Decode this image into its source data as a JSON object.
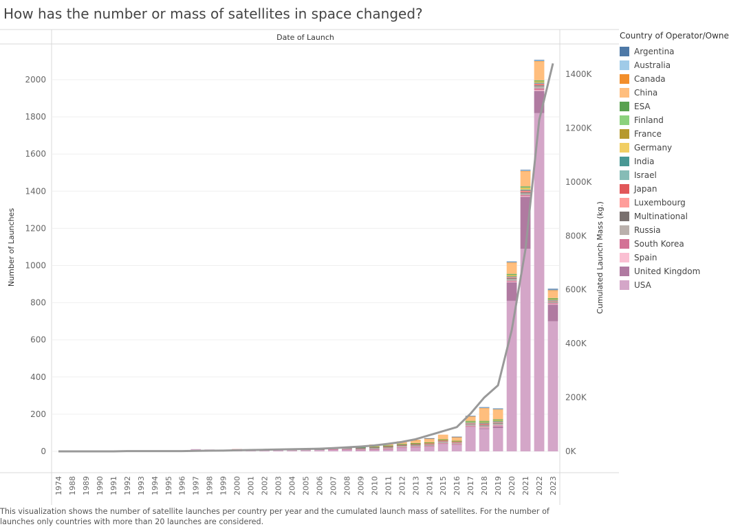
{
  "title": "How has the number or mass of satellites in space changed?",
  "caption": "This visualization shows the number of satellite launches per country per year and the cumulated launch mass of satellites. For the number of launches only countries with more than 20 launches are considered.",
  "chart_data": {
    "type": "bar",
    "stacked": true,
    "title": "How has the number or mass of satellites in space changed?",
    "column_header": "Date of Launch",
    "ylabel": "Number of Launches",
    "y2label": "Cumulated Launch Mass (kg.)",
    "ylim": [
      0,
      2100
    ],
    "y_ticks": [
      "0",
      "200",
      "400",
      "600",
      "800",
      "1000",
      "1200",
      "1400",
      "1600",
      "1800",
      "2000"
    ],
    "y2lim": [
      0,
      1450000
    ],
    "y2_ticks": [
      "0K",
      "200K",
      "400K",
      "600K",
      "800K",
      "1000K",
      "1200K",
      "1400K"
    ],
    "legend_title": "Country of Operator/Owner",
    "legend_position": "right",
    "grid": true,
    "categories": [
      "1974",
      "1988",
      "1989",
      "1990",
      "1991",
      "1992",
      "1993",
      "1994",
      "1995",
      "1996",
      "1997",
      "1998",
      "1999",
      "2000",
      "2001",
      "2002",
      "2003",
      "2004",
      "2005",
      "2006",
      "2007",
      "2008",
      "2009",
      "2010",
      "2011",
      "2012",
      "2013",
      "2014",
      "2015",
      "2016",
      "2017",
      "2018",
      "2019",
      "2020",
      "2021",
      "2022",
      "2023"
    ],
    "series": [
      {
        "name": "Argentina",
        "color": "#4e79a7",
        "values": [
          0,
          0,
          0,
          0,
          0,
          0,
          0,
          0,
          0,
          0,
          0,
          0,
          0,
          0,
          0,
          0,
          0,
          0,
          0,
          0,
          0,
          0,
          0,
          0,
          0,
          0,
          0,
          1,
          0,
          1,
          1,
          2,
          2,
          3,
          3,
          3,
          5
        ]
      },
      {
        "name": "Australia",
        "color": "#a0cbe8",
        "values": [
          0,
          0,
          0,
          0,
          0,
          0,
          0,
          0,
          0,
          0,
          0,
          0,
          0,
          0,
          0,
          0,
          0,
          0,
          0,
          0,
          0,
          0,
          0,
          0,
          0,
          0,
          0,
          0,
          0,
          0,
          0,
          1,
          1,
          2,
          3,
          4,
          3
        ]
      },
      {
        "name": "Canada",
        "color": "#f28e2b",
        "values": [
          0,
          0,
          0,
          0,
          0,
          0,
          0,
          0,
          0,
          0,
          0,
          0,
          0,
          0,
          0,
          0,
          0,
          0,
          0,
          0,
          0,
          0,
          0,
          0,
          0,
          0,
          1,
          1,
          0,
          1,
          1,
          1,
          1,
          2,
          3,
          3,
          2
        ]
      },
      {
        "name": "China",
        "color": "#ffbe7d",
        "values": [
          0,
          0,
          0,
          0,
          0,
          0,
          0,
          0,
          0,
          0,
          0,
          0,
          0,
          0,
          1,
          2,
          1,
          1,
          3,
          4,
          2,
          3,
          5,
          10,
          10,
          14,
          15,
          20,
          25,
          20,
          25,
          70,
          55,
          60,
          80,
          100,
          40
        ]
      },
      {
        "name": "ESA",
        "color": "#59a14f",
        "values": [
          0,
          0,
          0,
          0,
          0,
          0,
          0,
          0,
          0,
          0,
          0,
          0,
          0,
          0,
          0,
          0,
          0,
          0,
          0,
          0,
          0,
          1,
          1,
          1,
          1,
          1,
          2,
          2,
          2,
          1,
          2,
          3,
          3,
          3,
          3,
          3,
          2
        ]
      },
      {
        "name": "Finland",
        "color": "#8cd17d",
        "values": [
          0,
          0,
          0,
          0,
          0,
          0,
          0,
          0,
          0,
          0,
          0,
          0,
          0,
          0,
          0,
          0,
          0,
          0,
          0,
          0,
          0,
          0,
          0,
          0,
          0,
          0,
          0,
          0,
          0,
          0,
          1,
          2,
          2,
          3,
          4,
          3,
          2
        ]
      },
      {
        "name": "France",
        "color": "#b6992d",
        "values": [
          0,
          0,
          0,
          0,
          0,
          0,
          0,
          0,
          0,
          0,
          0,
          0,
          0,
          0,
          0,
          0,
          0,
          0,
          0,
          0,
          0,
          0,
          0,
          1,
          1,
          1,
          1,
          1,
          1,
          1,
          2,
          2,
          2,
          2,
          2,
          2,
          1
        ]
      },
      {
        "name": "Germany",
        "color": "#f1ce63",
        "values": [
          0,
          0,
          0,
          0,
          0,
          0,
          0,
          0,
          0,
          0,
          0,
          0,
          0,
          0,
          0,
          0,
          0,
          0,
          0,
          0,
          0,
          0,
          0,
          1,
          1,
          1,
          1,
          1,
          1,
          1,
          2,
          3,
          3,
          5,
          8,
          5,
          4
        ]
      },
      {
        "name": "India",
        "color": "#499894",
        "values": [
          0,
          0,
          0,
          0,
          0,
          0,
          0,
          0,
          0,
          0,
          0,
          0,
          0,
          0,
          0,
          0,
          0,
          0,
          0,
          0,
          1,
          1,
          1,
          1,
          2,
          2,
          2,
          2,
          2,
          2,
          3,
          2,
          2,
          2,
          3,
          3,
          2
        ]
      },
      {
        "name": "Israel",
        "color": "#86bcb6",
        "values": [
          0,
          0,
          0,
          0,
          0,
          0,
          0,
          0,
          0,
          0,
          0,
          0,
          0,
          0,
          0,
          0,
          0,
          0,
          0,
          0,
          0,
          0,
          0,
          0,
          0,
          0,
          0,
          0,
          0,
          0,
          1,
          1,
          1,
          2,
          2,
          2,
          1
        ]
      },
      {
        "name": "Japan",
        "color": "#e15759",
        "values": [
          0,
          0,
          0,
          0,
          0,
          0,
          0,
          0,
          0,
          0,
          0,
          0,
          0,
          1,
          0,
          0,
          2,
          1,
          1,
          2,
          2,
          2,
          3,
          3,
          3,
          3,
          3,
          3,
          3,
          3,
          3,
          5,
          3,
          3,
          5,
          5,
          3
        ]
      },
      {
        "name": "Luxembourg",
        "color": "#ff9d9a",
        "values": [
          0,
          0,
          0,
          0,
          0,
          0,
          0,
          0,
          0,
          0,
          0,
          0,
          0,
          0,
          0,
          0,
          0,
          0,
          0,
          0,
          0,
          0,
          0,
          0,
          0,
          0,
          0,
          1,
          1,
          1,
          2,
          3,
          3,
          3,
          5,
          4,
          3
        ]
      },
      {
        "name": "Multinational",
        "color": "#79706e",
        "values": [
          0,
          0,
          0,
          0,
          0,
          0,
          0,
          0,
          0,
          0,
          0,
          0,
          0,
          0,
          0,
          0,
          1,
          1,
          1,
          1,
          2,
          2,
          2,
          3,
          3,
          3,
          4,
          4,
          4,
          3,
          3,
          4,
          4,
          4,
          5,
          5,
          3
        ]
      },
      {
        "name": "Russia",
        "color": "#bab0ac",
        "values": [
          0,
          0,
          0,
          0,
          0,
          0,
          0,
          0,
          0,
          0,
          0,
          0,
          2,
          3,
          3,
          3,
          3,
          3,
          3,
          3,
          4,
          4,
          5,
          5,
          6,
          6,
          6,
          6,
          7,
          6,
          8,
          8,
          8,
          10,
          10,
          12,
          6
        ]
      },
      {
        "name": "South Korea",
        "color": "#d37295",
        "values": [
          0,
          0,
          0,
          0,
          0,
          0,
          0,
          0,
          0,
          0,
          0,
          0,
          0,
          0,
          0,
          0,
          0,
          0,
          0,
          0,
          1,
          1,
          1,
          1,
          1,
          1,
          1,
          1,
          1,
          1,
          2,
          3,
          3,
          5,
          5,
          8,
          5
        ]
      },
      {
        "name": "Spain",
        "color": "#fabfd2",
        "values": [
          0,
          0,
          0,
          0,
          0,
          0,
          0,
          0,
          0,
          0,
          0,
          0,
          0,
          0,
          0,
          0,
          0,
          0,
          0,
          0,
          0,
          0,
          0,
          0,
          1,
          1,
          1,
          1,
          1,
          1,
          2,
          3,
          3,
          3,
          4,
          5,
          3
        ]
      },
      {
        "name": "United Kingdom",
        "color": "#b07aa1",
        "values": [
          0,
          0,
          0,
          0,
          0,
          0,
          0,
          0,
          0,
          0,
          0,
          0,
          0,
          0,
          0,
          0,
          0,
          0,
          0,
          0,
          0,
          1,
          1,
          1,
          1,
          1,
          2,
          2,
          2,
          2,
          3,
          5,
          10,
          100,
          280,
          120,
          90
        ]
      },
      {
        "name": "USA",
        "color": "#d4a6c8",
        "values": [
          0,
          0,
          0,
          0,
          0,
          0,
          0,
          0,
          0,
          0,
          12,
          10,
          6,
          8,
          4,
          6,
          6,
          5,
          6,
          7,
          10,
          10,
          8,
          10,
          12,
          20,
          22,
          25,
          40,
          35,
          130,
          120,
          125,
          810,
          1090,
          1820,
          700
        ]
      }
    ],
    "line_series": {
      "name": "Cumulated Launch Mass (kg.)",
      "color": "#999999",
      "values": [
        0,
        0,
        0,
        0,
        0,
        1000,
        1000,
        1000,
        1000,
        1000,
        2000,
        2500,
        3000,
        4000,
        5000,
        6000,
        7000,
        8000,
        9000,
        10000,
        12000,
        15000,
        18000,
        22000,
        28000,
        35000,
        45000,
        60000,
        75000,
        90000,
        140000,
        200000,
        245000,
        450000,
        750000,
        1230000,
        1440000
      ]
    }
  }
}
